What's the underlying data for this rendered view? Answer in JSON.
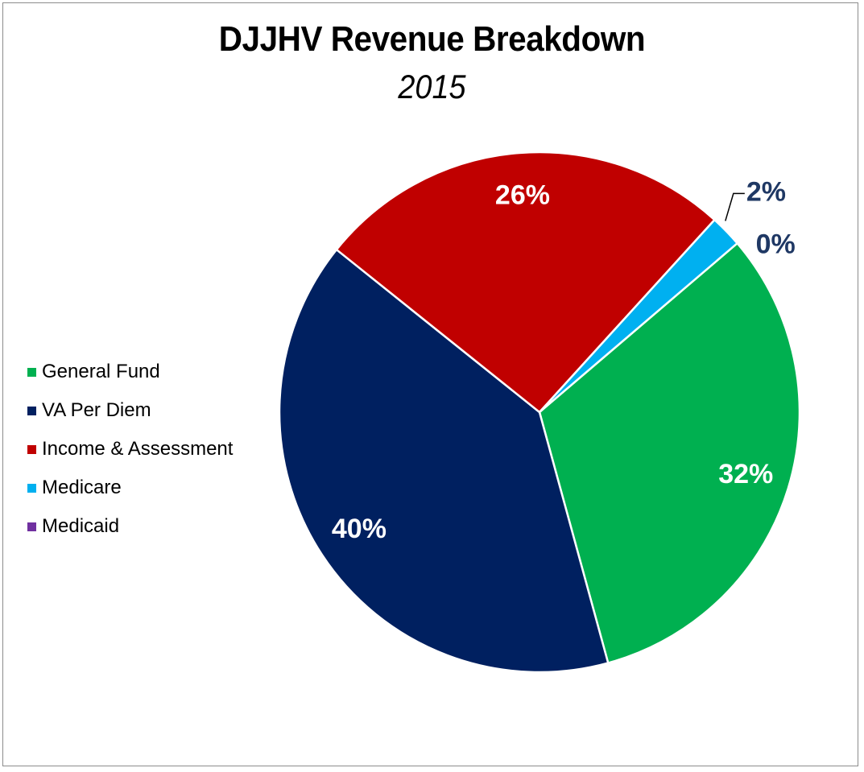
{
  "chart_data": {
    "type": "pie",
    "title": "DJJHV Revenue Breakdown",
    "subtitle": "2015",
    "legend_position": "left",
    "slices": [
      {
        "name": "General Fund",
        "value": 32,
        "label": "32%",
        "color": "#00b050",
        "label_color": "#ffffff"
      },
      {
        "name": "VA Per Diem",
        "value": 40,
        "label": "40%",
        "color": "#002060",
        "label_color": "#ffffff"
      },
      {
        "name": "Income & Assessment",
        "value": 26,
        "label": "26%",
        "color": "#c00000",
        "label_color": "#ffffff"
      },
      {
        "name": "Medicare",
        "value": 2,
        "label": "2%",
        "color": "#00b0f0",
        "label_color": "#1f3864"
      },
      {
        "name": "Medicaid",
        "value": 0,
        "label": "0%",
        "color": "#7030a0",
        "label_color": "#1f3864"
      }
    ]
  }
}
